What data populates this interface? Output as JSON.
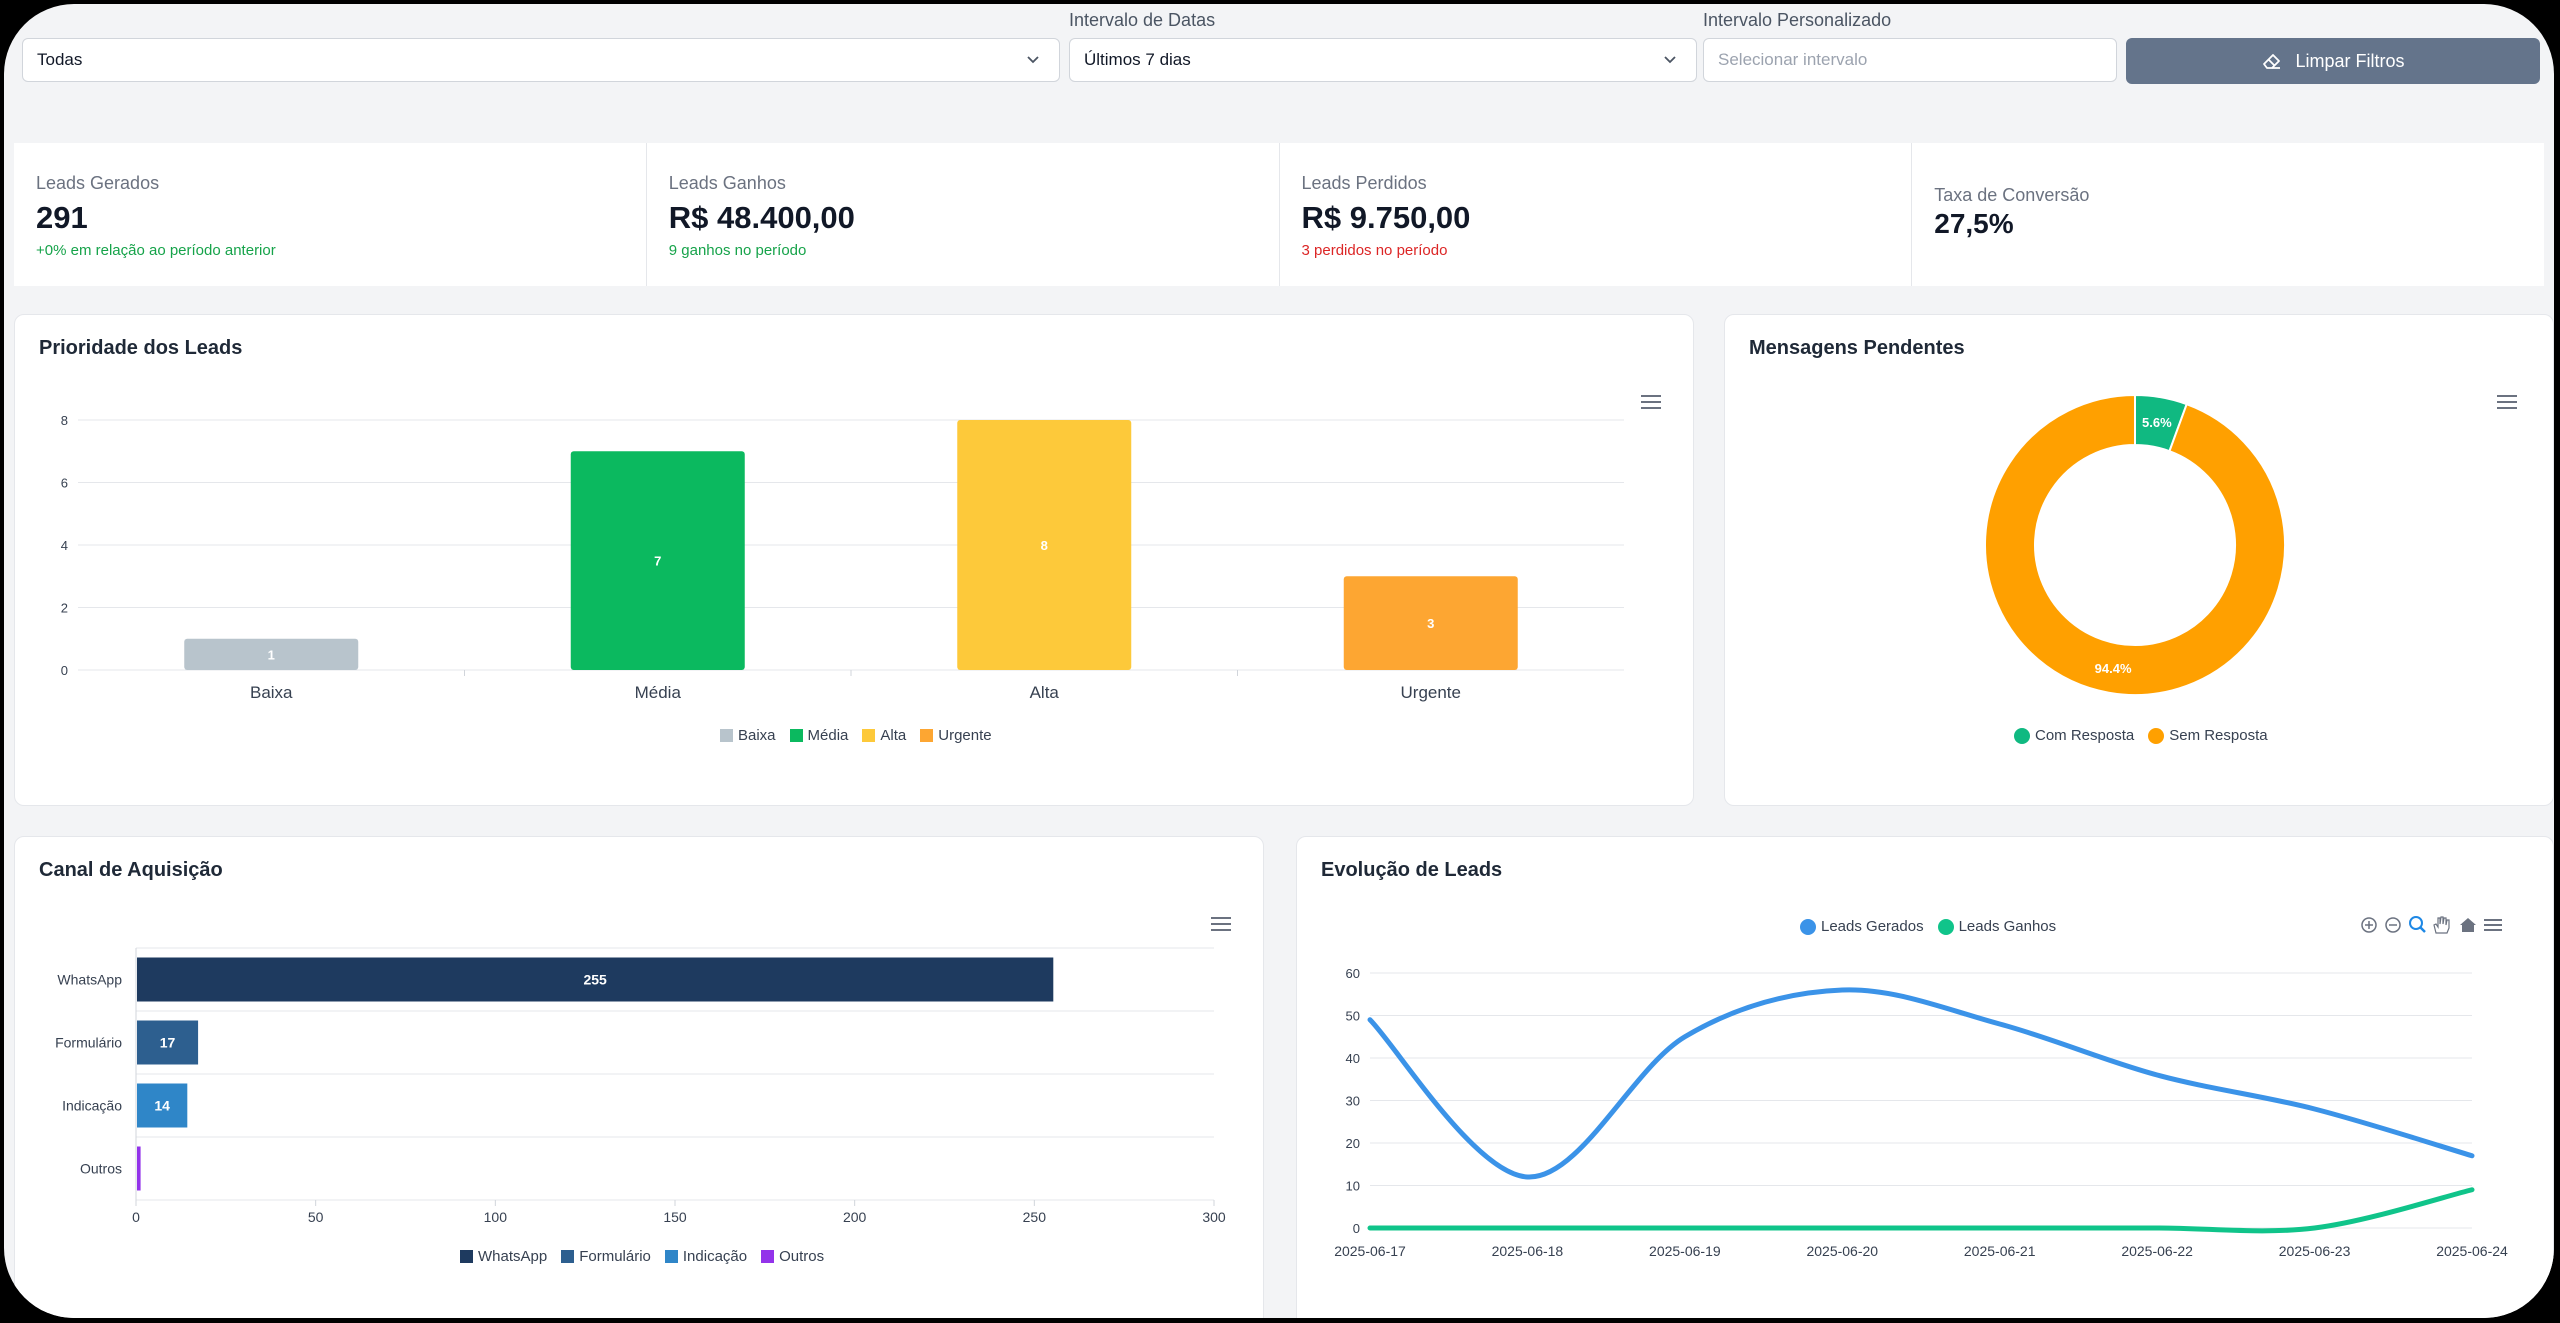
{
  "filters": {
    "status_value": "Todas",
    "date_label": "Intervalo de Datas",
    "date_value": "Últimos 7 dias",
    "custom_label": "Intervalo Personalizado",
    "custom_placeholder": "Selecionar intervalo",
    "clear_label": "Limpar Filtros"
  },
  "kpis": [
    {
      "title": "Leads Gerados",
      "value": "291",
      "sub": "+0% em relação ao período anterior"
    },
    {
      "title": "Leads Ganhos",
      "value": "R$ 48.400,00",
      "sub": "9 ganhos no período"
    },
    {
      "title": "Leads Perdidos",
      "value": "R$ 9.750,00",
      "sub": "3 perdidos no período"
    },
    {
      "title": "Taxa de Conversão",
      "value": "27,5%"
    }
  ],
  "cards": {
    "priority": "Prioridade dos Leads",
    "pending": "Mensagens Pendentes",
    "channel": "Canal de Aquisição",
    "evolution": "Evolução de Leads"
  },
  "colors": {
    "baixa": "#b8c4cc",
    "media": "#0bb95f",
    "alta": "#fdc93a",
    "urgente": "#fda632"
  },
  "chart_data": [
    {
      "type": "bar",
      "title": "Prioridade dos Leads",
      "categories": [
        "Baixa",
        "Média",
        "Alta",
        "Urgente"
      ],
      "values": [
        1,
        7,
        8,
        3
      ],
      "ylim": [
        0,
        8
      ],
      "yticks": [
        "0",
        "2",
        "4",
        "6",
        "8"
      ],
      "legend": [
        "Baixa",
        "Média",
        "Alta",
        "Urgente"
      ],
      "legend_position": "bottom",
      "grid": true
    },
    {
      "type": "pie",
      "title": "Mensagens Pendentes",
      "labels": [
        "Com Resposta",
        "Sem Resposta"
      ],
      "values": [
        5.6,
        94.4
      ],
      "value_labels": [
        "5.6%",
        "94.4%"
      ],
      "colors": [
        "#10b981",
        "#ffa000"
      ],
      "legend_position": "bottom"
    },
    {
      "type": "bar",
      "orientation": "horizontal",
      "title": "Canal de Aquisição",
      "categories": [
        "WhatsApp",
        "Formulário",
        "Indicação",
        "Outros"
      ],
      "values": [
        255,
        17,
        14,
        1
      ],
      "value_labels": [
        "255",
        "17",
        "14",
        ""
      ],
      "colors": [
        "#1e3a5f",
        "#2d5f8f",
        "#2f86c8",
        "#9333ea"
      ],
      "xlim": [
        0,
        300
      ],
      "xticks": [
        "0",
        "50",
        "100",
        "150",
        "200",
        "250",
        "300"
      ],
      "legend": [
        "WhatsApp",
        "Formulário",
        "Indicação",
        "Outros"
      ],
      "legend_position": "bottom",
      "grid": true
    },
    {
      "type": "line",
      "title": "Evolução de Leads",
      "x": [
        "2025-06-17",
        "2025-06-18",
        "2025-06-19",
        "2025-06-20",
        "2025-06-21",
        "2025-06-22",
        "2025-06-23",
        "2025-06-24"
      ],
      "series": [
        {
          "name": "Leads Gerados",
          "values": [
            49,
            12,
            45,
            56,
            48,
            36,
            28,
            17
          ],
          "color": "#3b93e8"
        },
        {
          "name": "Leads Ganhos",
          "values": [
            0,
            0,
            0,
            0,
            0,
            0,
            0,
            9
          ],
          "color": "#10c48a"
        }
      ],
      "ylim": [
        0,
        60
      ],
      "yticks": [
        "0",
        "10",
        "20",
        "30",
        "40",
        "50",
        "60"
      ],
      "legend_position": "top",
      "grid": true
    }
  ]
}
